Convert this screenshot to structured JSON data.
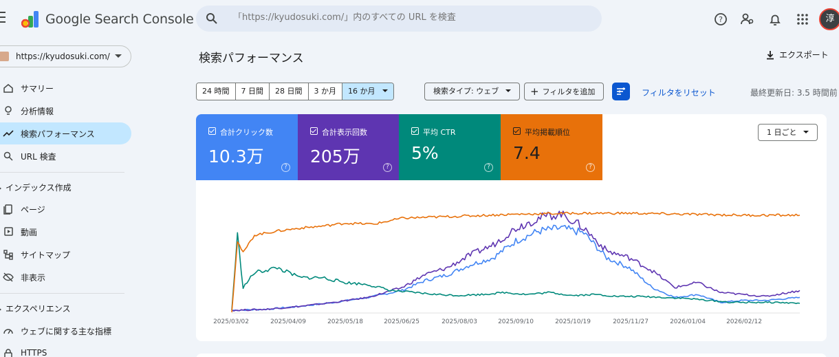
{
  "app": {
    "title": "Google Search Console",
    "search_placeholder": "「https://kyudosuki.com/」内のすべての URL を検査",
    "avatar_initial": "淳",
    "icons": {
      "menu": "hamburger-icon",
      "search": "search-icon",
      "help": "help-icon",
      "users": "manage-users-icon",
      "notifications": "bell-icon",
      "apps": "apps-grid-icon"
    }
  },
  "sidebar": {
    "property": "https://kyudosuki.com/",
    "items_top": [
      {
        "label": "サマリー",
        "icon": "home-icon",
        "active": false
      },
      {
        "label": "分析情報",
        "icon": "insights-icon",
        "active": false
      },
      {
        "label": "検索パフォーマンス",
        "icon": "trending-up-icon",
        "active": true
      },
      {
        "label": "URL 検査",
        "icon": "search-icon",
        "active": false
      }
    ],
    "section_index": "インデックス作成",
    "items_index": [
      {
        "label": "ページ",
        "icon": "pages-icon"
      },
      {
        "label": "動画",
        "icon": "video-icon"
      },
      {
        "label": "サイトマップ",
        "icon": "sitemap-icon"
      },
      {
        "label": "非表示",
        "icon": "visibility-off-icon"
      }
    ],
    "section_experience": "エクスペリエンス",
    "items_experience": [
      {
        "label": "ウェブに関する主な指標",
        "icon": "speed-icon"
      },
      {
        "label": "HTTPS",
        "icon": "lock-icon"
      }
    ]
  },
  "main": {
    "title": "検索パフォーマンス",
    "export_label": "エクスポート",
    "date_ranges": [
      "24 時間",
      "7 日間",
      "28 日間",
      "3 か月",
      "16 か月"
    ],
    "selected_range": "16 か月",
    "search_type": "検索タイプ: ウェブ",
    "add_filter": "フィルタを追加",
    "reset_filters": "フィルタをリセット",
    "last_updated": "最終更新日: 3.5 時間前",
    "granularity": "1 日ごと"
  },
  "metrics": [
    {
      "label": "合計クリック数",
      "value": "10.3万",
      "color": "#4285f4",
      "checked": true
    },
    {
      "label": "合計表示回数",
      "value": "205万",
      "color": "#5e35b1",
      "checked": true
    },
    {
      "label": "平均 CTR",
      "value": "5%",
      "color": "#00897b",
      "checked": true
    },
    {
      "label": "平均掲載順位",
      "value": "7.4",
      "color": "#e8710a",
      "checked": true
    }
  ],
  "chart_data": {
    "type": "line",
    "x_ticks": [
      "2025/03/02",
      "2025/04/09",
      "2025/05/18",
      "2025/06/25",
      "2025/08/03",
      "2025/09/10",
      "2025/10/19",
      "2025/11/27",
      "2026/01/04",
      "2026/02/12"
    ],
    "y_axis": "hidden (relative per-series scales)",
    "grid": false,
    "series": [
      {
        "name": "合計クリック数",
        "color": "#4285f4",
        "points": [
          [
            0,
            0.02
          ],
          [
            6,
            0.03
          ],
          [
            12,
            0.06
          ],
          [
            18,
            0.1
          ],
          [
            24,
            0.15
          ],
          [
            30,
            0.22
          ],
          [
            34,
            0.32
          ],
          [
            38,
            0.38
          ],
          [
            42,
            0.48
          ],
          [
            46,
            0.55
          ],
          [
            50,
            0.72
          ],
          [
            54,
            0.82
          ],
          [
            58,
            0.85
          ],
          [
            62,
            0.8
          ],
          [
            66,
            0.55
          ],
          [
            70,
            0.45
          ],
          [
            74,
            0.25
          ],
          [
            78,
            0.15
          ],
          [
            82,
            0.18
          ],
          [
            86,
            0.1
          ],
          [
            90,
            0.12
          ],
          [
            94,
            0.12
          ],
          [
            100,
            0.15
          ]
        ]
      },
      {
        "name": "合計表示回数",
        "color": "#5e35b1",
        "points": [
          [
            0,
            0.02
          ],
          [
            6,
            0.03
          ],
          [
            12,
            0.06
          ],
          [
            18,
            0.1
          ],
          [
            24,
            0.15
          ],
          [
            30,
            0.25
          ],
          [
            34,
            0.38
          ],
          [
            38,
            0.45
          ],
          [
            42,
            0.58
          ],
          [
            46,
            0.68
          ],
          [
            50,
            0.85
          ],
          [
            54,
            0.95
          ],
          [
            58,
            1.0
          ],
          [
            62,
            0.85
          ],
          [
            66,
            0.62
          ],
          [
            70,
            0.55
          ],
          [
            74,
            0.42
          ],
          [
            78,
            0.25
          ],
          [
            82,
            0.3
          ],
          [
            86,
            0.2
          ],
          [
            90,
            0.18
          ],
          [
            94,
            0.16
          ],
          [
            100,
            0.22
          ]
        ]
      },
      {
        "name": "平均 CTR",
        "color": "#00897b",
        "points": [
          [
            0,
            0.02
          ],
          [
            1,
            0.78
          ],
          [
            2,
            0.25
          ],
          [
            4,
            0.4
          ],
          [
            8,
            0.45
          ],
          [
            12,
            0.35
          ],
          [
            16,
            0.35
          ],
          [
            20,
            0.3
          ],
          [
            24,
            0.28
          ],
          [
            28,
            0.22
          ],
          [
            32,
            0.2
          ],
          [
            36,
            0.18
          ],
          [
            40,
            0.17
          ],
          [
            44,
            0.18
          ],
          [
            48,
            0.2
          ],
          [
            52,
            0.18
          ],
          [
            56,
            0.2
          ],
          [
            60,
            0.17
          ],
          [
            64,
            0.18
          ],
          [
            68,
            0.16
          ],
          [
            72,
            0.16
          ],
          [
            76,
            0.15
          ],
          [
            80,
            0.14
          ],
          [
            84,
            0.12
          ],
          [
            88,
            0.1
          ],
          [
            92,
            0.1
          ],
          [
            96,
            0.1
          ],
          [
            100,
            0.09
          ]
        ]
      },
      {
        "name": "平均掲載順位",
        "color": "#e8710a",
        "points": [
          [
            0,
            0.0
          ],
          [
            1,
            0.72
          ],
          [
            2,
            0.6
          ],
          [
            4,
            0.78
          ],
          [
            8,
            0.82
          ],
          [
            12,
            0.85
          ],
          [
            16,
            0.87
          ],
          [
            20,
            0.9
          ],
          [
            25,
            0.89
          ],
          [
            30,
            0.95
          ],
          [
            40,
            0.97
          ],
          [
            50,
            0.99
          ],
          [
            60,
            1.0
          ],
          [
            70,
            1.0
          ],
          [
            80,
            0.99
          ],
          [
            90,
            0.98
          ],
          [
            100,
            0.98
          ]
        ]
      }
    ]
  }
}
